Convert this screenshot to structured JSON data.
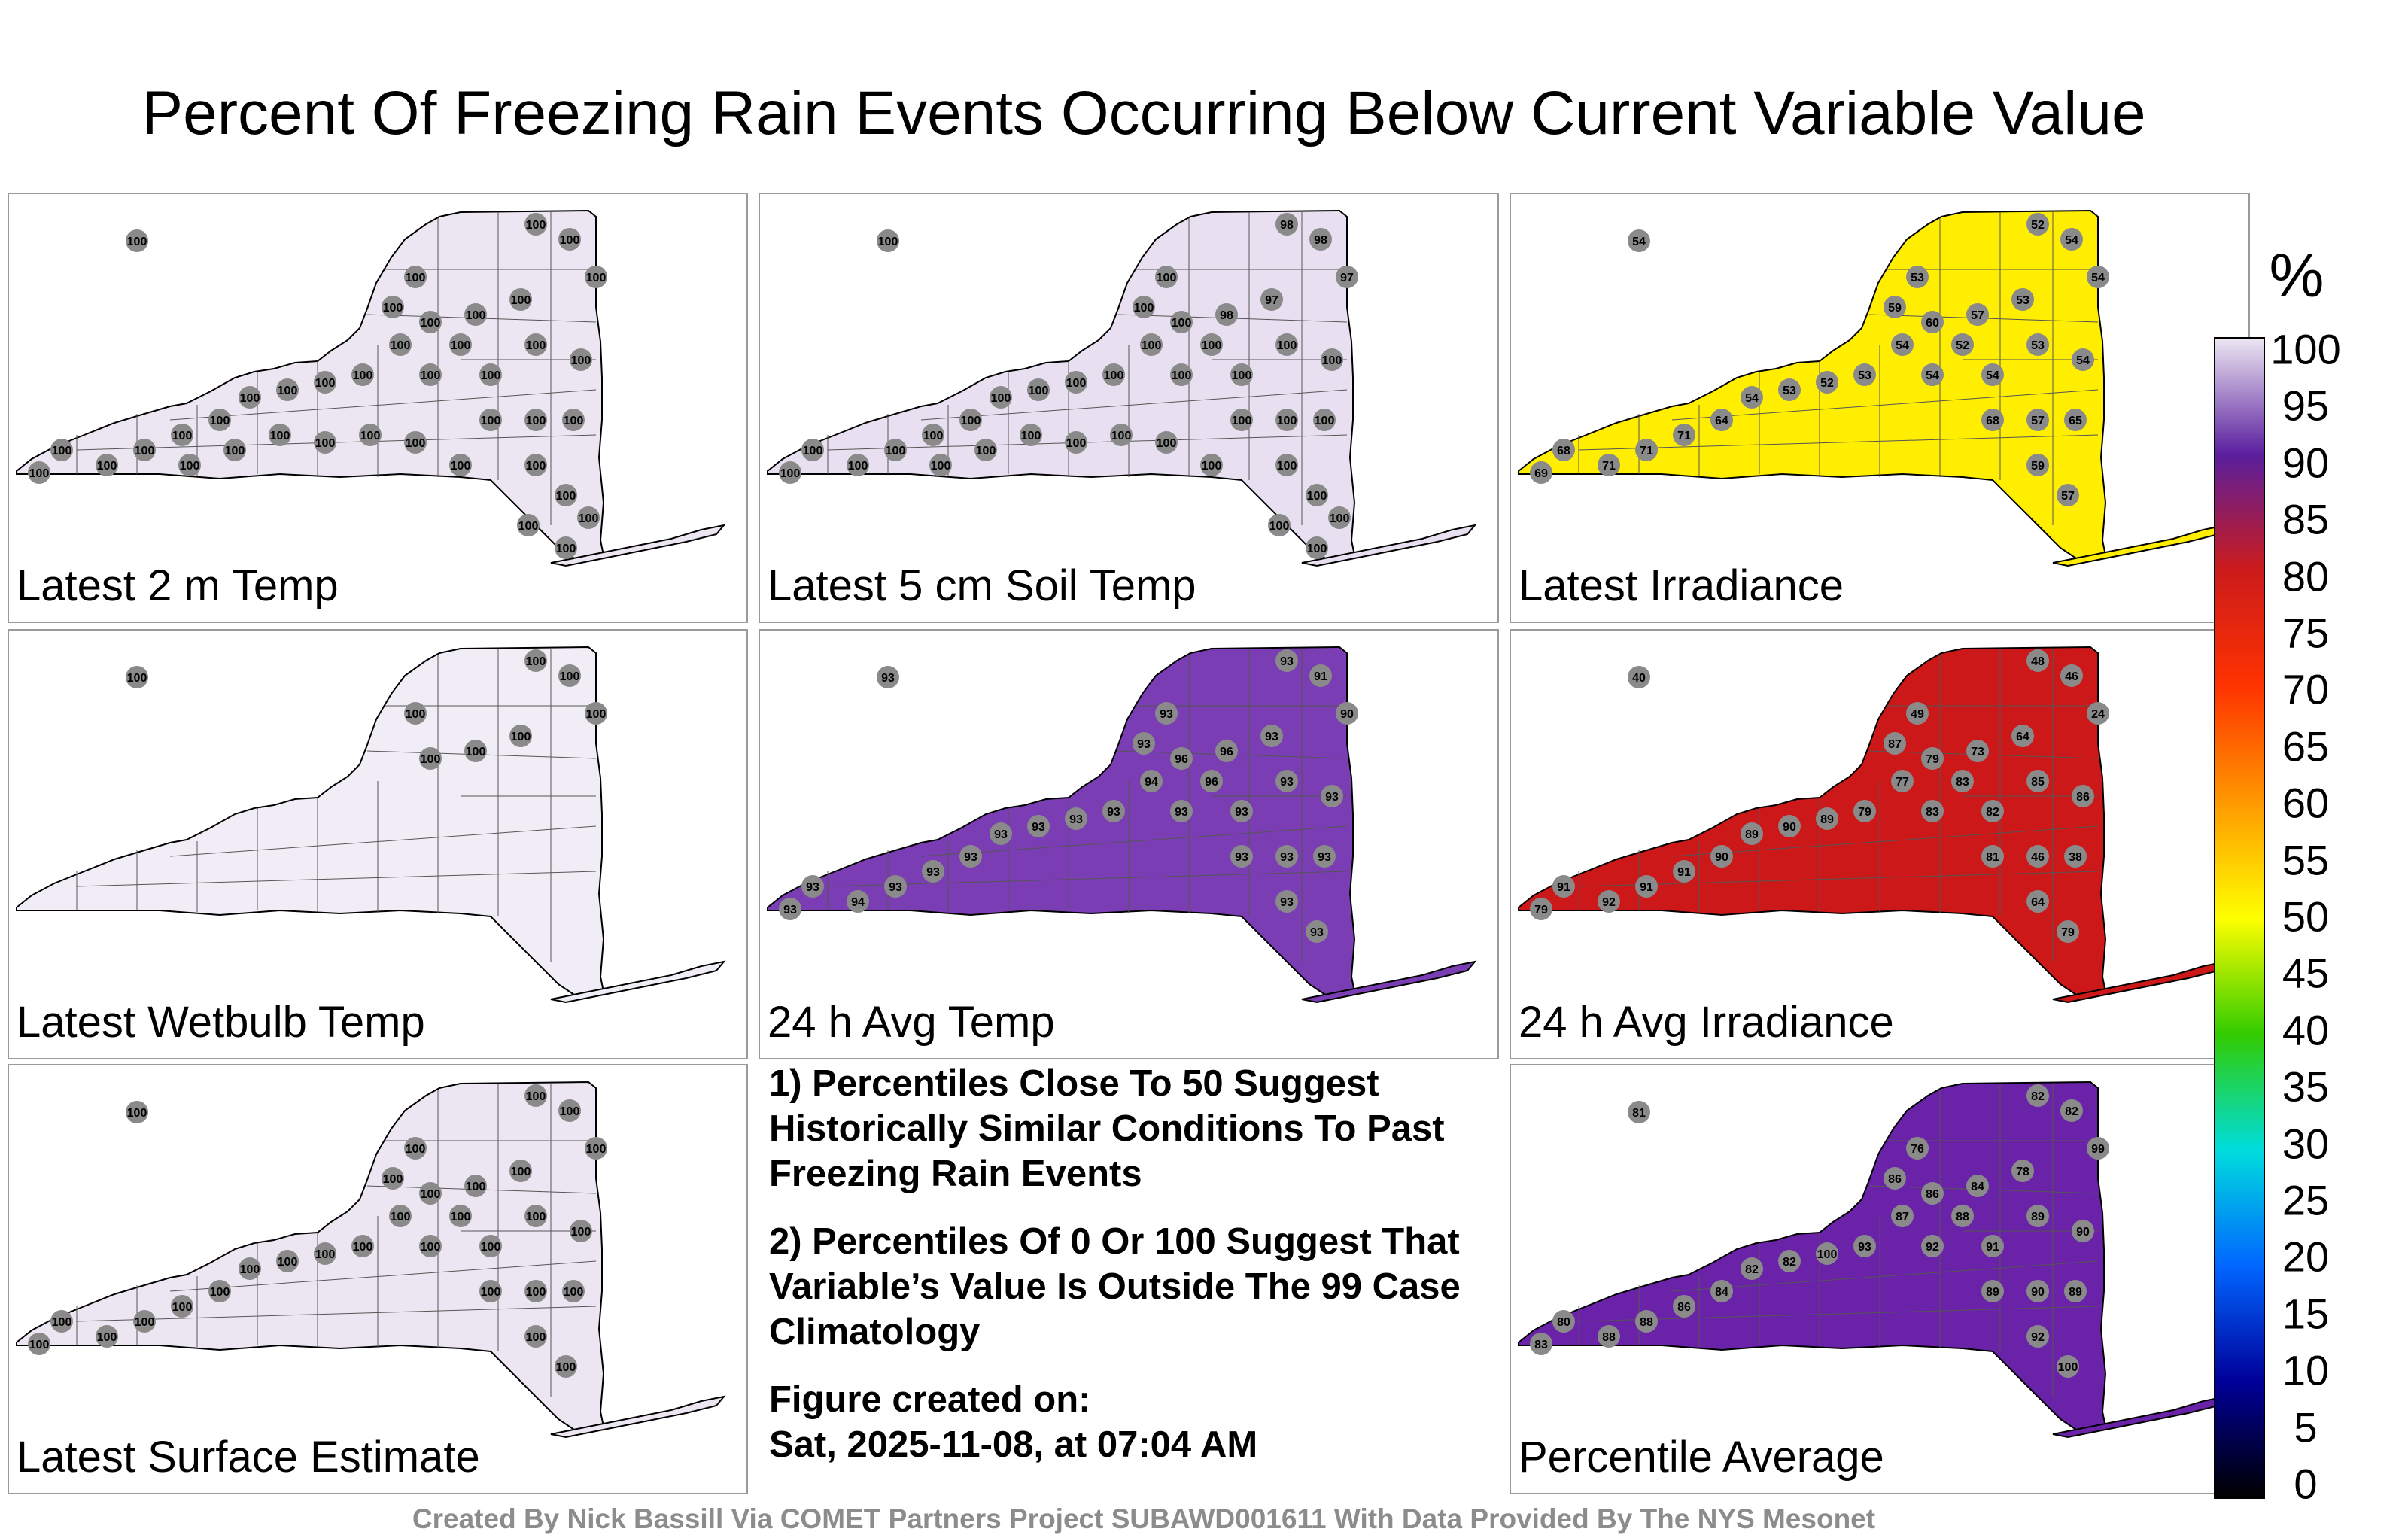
{
  "title": "Percent Of Freezing Rain Events Occurring Below Current Variable Value",
  "colorbar": {
    "unit": "%",
    "ticks": [
      "100",
      "95",
      "90",
      "85",
      "80",
      "75",
      "70",
      "65",
      "60",
      "55",
      "50",
      "45",
      "40",
      "35",
      "30",
      "25",
      "20",
      "15",
      "10",
      "5",
      "0"
    ],
    "colors": {
      "100": "#ece6f2",
      "90": "#5a1f9e",
      "80": "#cc1b1b",
      "70": "#ff3300",
      "60": "#ff9900",
      "50": "#ffff00",
      "40": "#33cc00",
      "30": "#00dddd",
      "20": "#0066ff",
      "10": "#000099",
      "0": "#000000"
    }
  },
  "panels": [
    {
      "label": "Latest 2 m Temp",
      "fill": "#ece6f2",
      "value_labels": [
        "100",
        "100",
        "100",
        "100",
        "100",
        "100",
        "100",
        "100",
        "100",
        "100",
        "100",
        "100",
        "100",
        "100",
        "100",
        "100",
        "100",
        "100",
        "100",
        "100",
        "100",
        "100",
        "100",
        "100",
        "100",
        "100",
        "100",
        "100",
        "100",
        "100",
        "100",
        "100",
        "100",
        "100",
        "100",
        "100",
        "100",
        "100",
        "100",
        "100"
      ]
    },
    {
      "label": "Latest 5 cm Soil Temp",
      "fill": "#e8e0f0",
      "value_labels": [
        "100",
        "100",
        "98",
        "98",
        "97",
        "97",
        "98",
        "100",
        "100",
        "100",
        "100",
        "100",
        "100",
        "100",
        "100",
        "100",
        "100",
        "100",
        "100",
        "100",
        "100",
        "100",
        "100",
        "100",
        "100",
        "100",
        "100",
        "100",
        "100",
        "100",
        "100",
        "100",
        "100",
        "100",
        "100",
        "100",
        "100",
        "100",
        "100",
        "100"
      ]
    },
    {
      "label": "Latest Irradiance",
      "fill": "#ffee00",
      "value_labels": [
        "54",
        "53",
        "52",
        "54",
        "54",
        "53",
        "57",
        "60",
        "59",
        "54",
        "52",
        "53",
        "54",
        "54",
        "54",
        "53",
        "52",
        "53",
        "54",
        "64",
        "71",
        "71",
        "71",
        "68",
        "69",
        "68",
        "57",
        "65",
        "59",
        "57"
      ]
    },
    {
      "label": "Latest Wetbulb Temp",
      "fill": "#f1edf6",
      "value_labels": [
        "100",
        "100",
        "100",
        "100",
        "100",
        "100",
        "100",
        "100"
      ]
    },
    {
      "label": "24 h Avg Temp",
      "fill": "#7a3db3",
      "value_labels": [
        "93",
        "93",
        "93",
        "91",
        "90",
        "93",
        "96",
        "96",
        "93",
        "94",
        "96",
        "93",
        "93",
        "93",
        "93",
        "93",
        "93",
        "93",
        "93",
        "93",
        "93",
        "93",
        "94",
        "93",
        "93",
        "93",
        "93",
        "93",
        "93",
        "93"
      ]
    },
    {
      "label": "24 h Avg Irradiance",
      "fill": "#cc1818",
      "value_labels": [
        "40",
        "49",
        "48",
        "46",
        "24",
        "64",
        "73",
        "79",
        "87",
        "77",
        "83",
        "85",
        "86",
        "82",
        "83",
        "79",
        "89",
        "90",
        "89",
        "90",
        "91",
        "91",
        "92",
        "91",
        "79",
        "81",
        "46",
        "38",
        "64",
        "79"
      ]
    },
    {
      "label": "Latest Surface Estimate",
      "fill": "#ece6f2",
      "value_labels": [
        "100",
        "100",
        "100",
        "100",
        "100",
        "100",
        "100",
        "100",
        "100",
        "100",
        "100",
        "100",
        "100",
        "100",
        "100",
        "100",
        "100",
        "100",
        "100",
        "100",
        "100",
        "100",
        "100",
        "100",
        "100",
        "100",
        "100",
        "100",
        "100",
        "100"
      ]
    },
    {
      "label": "Percentile Average",
      "fill": "#6a23a8",
      "value_labels": [
        "81",
        "76",
        "82",
        "82",
        "99",
        "78",
        "84",
        "86",
        "86",
        "87",
        "88",
        "89",
        "90",
        "91",
        "92",
        "93",
        "100",
        "82",
        "82",
        "84",
        "86",
        "88",
        "88",
        "80",
        "83",
        "89",
        "90",
        "89",
        "92",
        "100"
      ]
    }
  ],
  "notes": [
    "1) Percentiles Close To 50 Suggest Historically Similar Conditions To Past Freezing Rain Events",
    "2) Percentiles Of 0 Or 100 Suggest That Variable’s Value Is Outside The 99 Case Climatology",
    "Figure created on:",
    "Sat, 2025-11-08, at 07:04 AM"
  ],
  "credit": "Created By Nick Bassill Via COMET Partners Project SUBAWD001611 With Data Provided By The NYS Mesonet"
}
